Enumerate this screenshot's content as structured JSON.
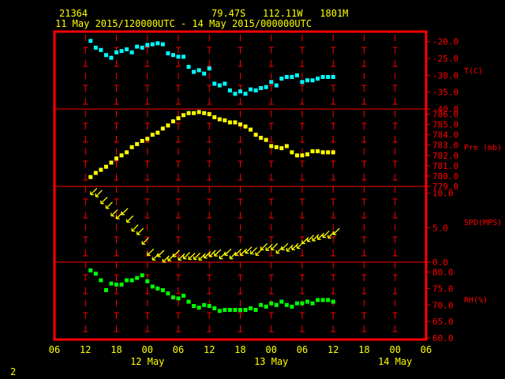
{
  "header": {
    "station": "21364",
    "location": "79.47S   112.11W   1801M",
    "period": "11 May 2015/120000UTC - 14 May 2015/000000UTC"
  },
  "page_number": "2",
  "colors": {
    "background": "#000000",
    "frame": "#ff0000",
    "text": "#ffff00",
    "axis_labels": "#ff0000",
    "temperature": "#00ffff",
    "pressure": "#ffff00",
    "wind": "#ffff00",
    "humidity": "#00ff00"
  },
  "chart_data": [
    {
      "type": "scatter",
      "panel": "temperature",
      "ylabel": "T(C)",
      "ylim": [
        -40,
        -17.5
      ],
      "yticks": [
        "-20.0",
        "-25.0",
        "-30.0",
        "-35.0",
        "-40.0"
      ],
      "series": [
        {
          "x": [
            13,
            14,
            15,
            16,
            17,
            18,
            19,
            20,
            21,
            22,
            23,
            24,
            25,
            26,
            27,
            28,
            29,
            30,
            31,
            32,
            33,
            34,
            35,
            36,
            37,
            38,
            39,
            40,
            41,
            42,
            43,
            44,
            45,
            46,
            47,
            48,
            49,
            50,
            51,
            52,
            53,
            54,
            55,
            56,
            57,
            58,
            59,
            60
          ],
          "y": [
            -19.8,
            -21.8,
            -22.5,
            -24.0,
            -24.8,
            -23.2,
            -22.8,
            -22.3,
            -23.2,
            -21.5,
            -21.8,
            -21.0,
            -20.8,
            -20.5,
            -20.8,
            -23.5,
            -24.0,
            -24.5,
            -24.5,
            -27.5,
            -29.0,
            -28.5,
            -29.5,
            -28.0,
            -32.5,
            -33.0,
            -32.5,
            -34.5,
            -35.5,
            -34.8,
            -35.5,
            -34.2,
            -34.5,
            -33.8,
            -33.5,
            -32.0,
            -33.0,
            -31.0,
            -30.5,
            -30.5,
            -30.0,
            -32.0,
            -31.5,
            -31.5,
            -31.0,
            -30.5,
            -30.5,
            -30.5
          ]
        }
      ]
    },
    {
      "type": "scatter",
      "panel": "pressure",
      "ylabel": "Pre (mb)",
      "ylim": [
        779,
        786.5
      ],
      "yticks": [
        "786.0",
        "785.0",
        "784.0",
        "783.0",
        "782.0",
        "781.0",
        "780.0",
        "779.0"
      ],
      "series": [
        {
          "x": [
            13,
            14,
            15,
            16,
            17,
            18,
            19,
            20,
            21,
            22,
            23,
            24,
            25,
            26,
            27,
            28,
            29,
            30,
            31,
            32,
            33,
            34,
            35,
            36,
            37,
            38,
            39,
            40,
            41,
            42,
            43,
            44,
            45,
            46,
            47,
            48,
            49,
            50,
            51,
            52,
            53,
            54,
            55,
            56,
            57,
            58,
            59,
            60
          ],
          "y": [
            779.9,
            780.3,
            780.6,
            780.9,
            781.3,
            781.7,
            782.0,
            782.3,
            782.8,
            783.1,
            783.4,
            783.6,
            784.0,
            784.2,
            784.6,
            784.9,
            785.3,
            785.6,
            785.9,
            786.1,
            786.1,
            786.2,
            786.1,
            786.0,
            785.7,
            785.5,
            785.4,
            785.2,
            785.2,
            785.0,
            784.8,
            784.5,
            784.0,
            783.7,
            783.5,
            782.9,
            782.8,
            782.7,
            782.9,
            782.3,
            782.0,
            782.0,
            782.1,
            782.4,
            782.4,
            782.3,
            782.3,
            782.3
          ]
        }
      ]
    },
    {
      "type": "scatter",
      "panel": "wind",
      "ylabel": "SPD(MPS)",
      "ylim": [
        0,
        11
      ],
      "yticks": [
        "10.0",
        "5.0",
        "0.0"
      ],
      "series": [
        {
          "x": [
            13,
            14,
            15,
            16,
            17,
            18,
            19,
            20,
            21,
            22,
            23,
            24,
            25,
            26,
            27,
            28,
            29,
            30,
            31,
            32,
            33,
            34,
            35,
            36,
            37,
            38,
            39,
            40,
            41,
            42,
            43,
            44,
            45,
            46,
            47,
            48,
            49,
            50,
            51,
            52,
            53,
            54,
            55,
            56,
            57,
            58,
            59,
            60
          ],
          "y": [
            9.8,
            9.5,
            8.5,
            7.8,
            6.7,
            6.3,
            6.9,
            5.8,
            4.5,
            4.0,
            2.6,
            1.0,
            0.3,
            0.8,
            0.0,
            0.2,
            0.8,
            0.3,
            0.5,
            0.4,
            0.4,
            0.3,
            0.6,
            0.8,
            0.9,
            0.5,
            1.0,
            0.5,
            1.0,
            1.0,
            1.3,
            1.2,
            1.0,
            1.8,
            1.7,
            1.8,
            1.3,
            1.8,
            1.6,
            1.8,
            2.0,
            2.7,
            3.0,
            3.1,
            3.3,
            3.6,
            3.5,
            4.0
          ]
        }
      ]
    },
    {
      "type": "scatter",
      "panel": "humidity",
      "ylabel": "RH(%)",
      "ylim": [
        60,
        83
      ],
      "yticks": [
        "80.0",
        "75.0",
        "70.0",
        "65.0",
        "60.0"
      ],
      "series": [
        {
          "x": [
            13,
            14,
            15,
            16,
            17,
            18,
            19,
            20,
            21,
            22,
            23,
            24,
            25,
            26,
            27,
            28,
            29,
            30,
            31,
            32,
            33,
            34,
            35,
            36,
            37,
            38,
            39,
            40,
            41,
            42,
            43,
            44,
            45,
            46,
            47,
            48,
            49,
            50,
            51,
            52,
            53,
            54,
            55,
            56,
            57,
            58,
            59,
            60
          ],
          "y": [
            80.5,
            79.5,
            77.5,
            74.5,
            76.5,
            76.2,
            76.2,
            77.5,
            77.5,
            78.2,
            79.0,
            77.2,
            75.6,
            75.0,
            74.5,
            73.5,
            72.3,
            72.0,
            72.8,
            71.0,
            69.7,
            69.2,
            70.0,
            69.7,
            69.0,
            68.2,
            68.5,
            68.5,
            68.5,
            68.5,
            68.5,
            69.0,
            68.5,
            70.0,
            69.5,
            70.5,
            70.0,
            71.0,
            70.0,
            69.5,
            70.5,
            70.5,
            71.0,
            70.5,
            71.5,
            71.5,
            71.5,
            71.0
          ]
        }
      ]
    },
    {
      "type": "axis",
      "xticks": [
        "06",
        "12",
        "18",
        "00",
        "06",
        "12",
        "18",
        "00",
        "06",
        "12",
        "18",
        "00",
        "06"
      ],
      "xtick_hours": [
        6,
        12,
        18,
        24,
        30,
        36,
        42,
        48,
        54,
        60,
        66,
        72,
        78
      ],
      "date_labels": [
        "12 May",
        "13 May",
        "14 May"
      ],
      "date_hours": [
        24,
        48,
        72
      ],
      "xlim": [
        6,
        78
      ]
    }
  ]
}
